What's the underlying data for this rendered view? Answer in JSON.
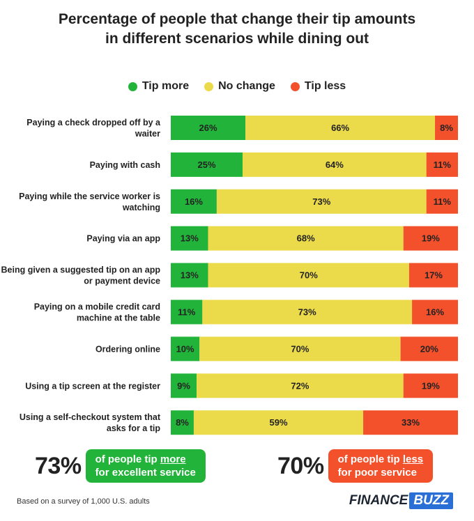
{
  "title_line1": "Percentage of people that change their tip amounts",
  "title_line2": "in different scenarios while dining out",
  "colors": {
    "more": "#22b43a",
    "nochange": "#ebda4a",
    "less": "#f2512b"
  },
  "chart_data": {
    "type": "bar",
    "orientation": "horizontal",
    "stacked": true,
    "title": "Percentage of people that change their tip amounts in different scenarios while dining out",
    "legend": {
      "placement": "top-center"
    },
    "categories": [
      [
        "Paying a check dropped off by a",
        "waiter"
      ],
      [
        "Paying with cash"
      ],
      [
        "Paying while the service worker is",
        "watching"
      ],
      [
        "Paying via an app"
      ],
      [
        "Being given a suggested tip on an app",
        "or payment device"
      ],
      [
        "Paying on a mobile credit card",
        "machine at the table"
      ],
      [
        "Ordering online"
      ],
      [
        "Using a tip screen at the register"
      ],
      [
        "Using a self-checkout system that",
        "asks for a tip"
      ]
    ],
    "series": [
      {
        "name": "Tip more",
        "values": [
          26,
          25,
          16,
          13,
          13,
          11,
          10,
          9,
          8
        ]
      },
      {
        "name": "No change",
        "values": [
          66,
          64,
          73,
          68,
          70,
          73,
          70,
          72,
          59
        ]
      },
      {
        "name": "Tip less",
        "values": [
          8,
          11,
          11,
          19,
          17,
          16,
          20,
          19,
          33
        ]
      }
    ],
    "unit": "%"
  },
  "stats": {
    "left": {
      "number": "73%",
      "pre": "of people tip ",
      "emph": "more",
      "line2": "for excellent service"
    },
    "right": {
      "number": "70%",
      "pre": "of people tip ",
      "emph": "less",
      "line2": "for poor service"
    }
  },
  "footnote": "Based on a survey of 1,000 U.S. adults",
  "logo": {
    "part1": "FINANCE",
    "part2": "BUZZ"
  }
}
